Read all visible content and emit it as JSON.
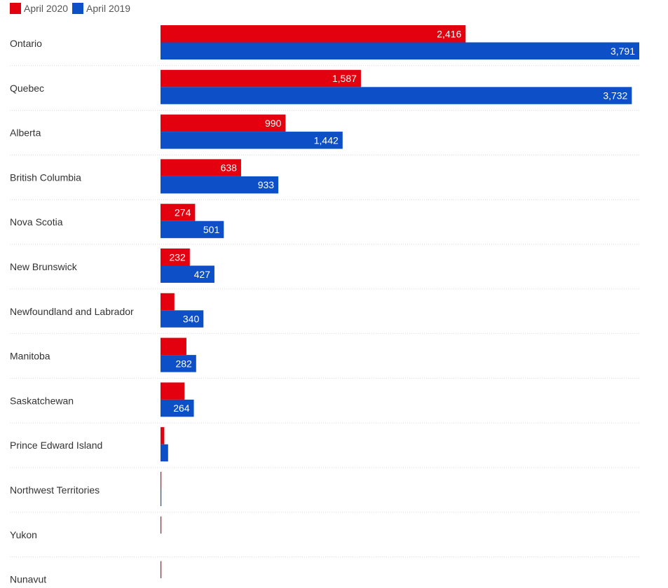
{
  "chart_data": {
    "type": "bar",
    "orientation": "horizontal",
    "categories": [
      "Ontario",
      "Quebec",
      "Alberta",
      "British Columbia",
      "Nova Scotia",
      "New Brunswick",
      "Newfoundland and Labrador",
      "Manitoba",
      "Saskatchewan",
      "Prince Edward Island",
      "Northwest Territories",
      "Yukon",
      "Nunavut"
    ],
    "series": [
      {
        "name": "April 2020",
        "color": "#e3000f",
        "values": [
          2416,
          1587,
          990,
          638,
          274,
          232,
          110,
          205,
          190,
          30,
          5,
          5,
          5
        ],
        "labels": [
          "2,416",
          "1,587",
          "990",
          "638",
          "274",
          "232",
          "",
          "",
          "",
          "",
          "",
          "",
          ""
        ]
      },
      {
        "name": "April 2019",
        "color": "#0c4fc6",
        "values": [
          3791,
          3732,
          1442,
          933,
          501,
          427,
          340,
          282,
          264,
          60,
          5,
          0,
          0
        ],
        "labels": [
          "3,791",
          "3,732",
          "1,442",
          "933",
          "501",
          "427",
          "340",
          "282",
          "264",
          "",
          "",
          "",
          ""
        ]
      }
    ],
    "xlim": [
      0,
      3791
    ],
    "gridlines": false,
    "legend_position": "top-left"
  }
}
